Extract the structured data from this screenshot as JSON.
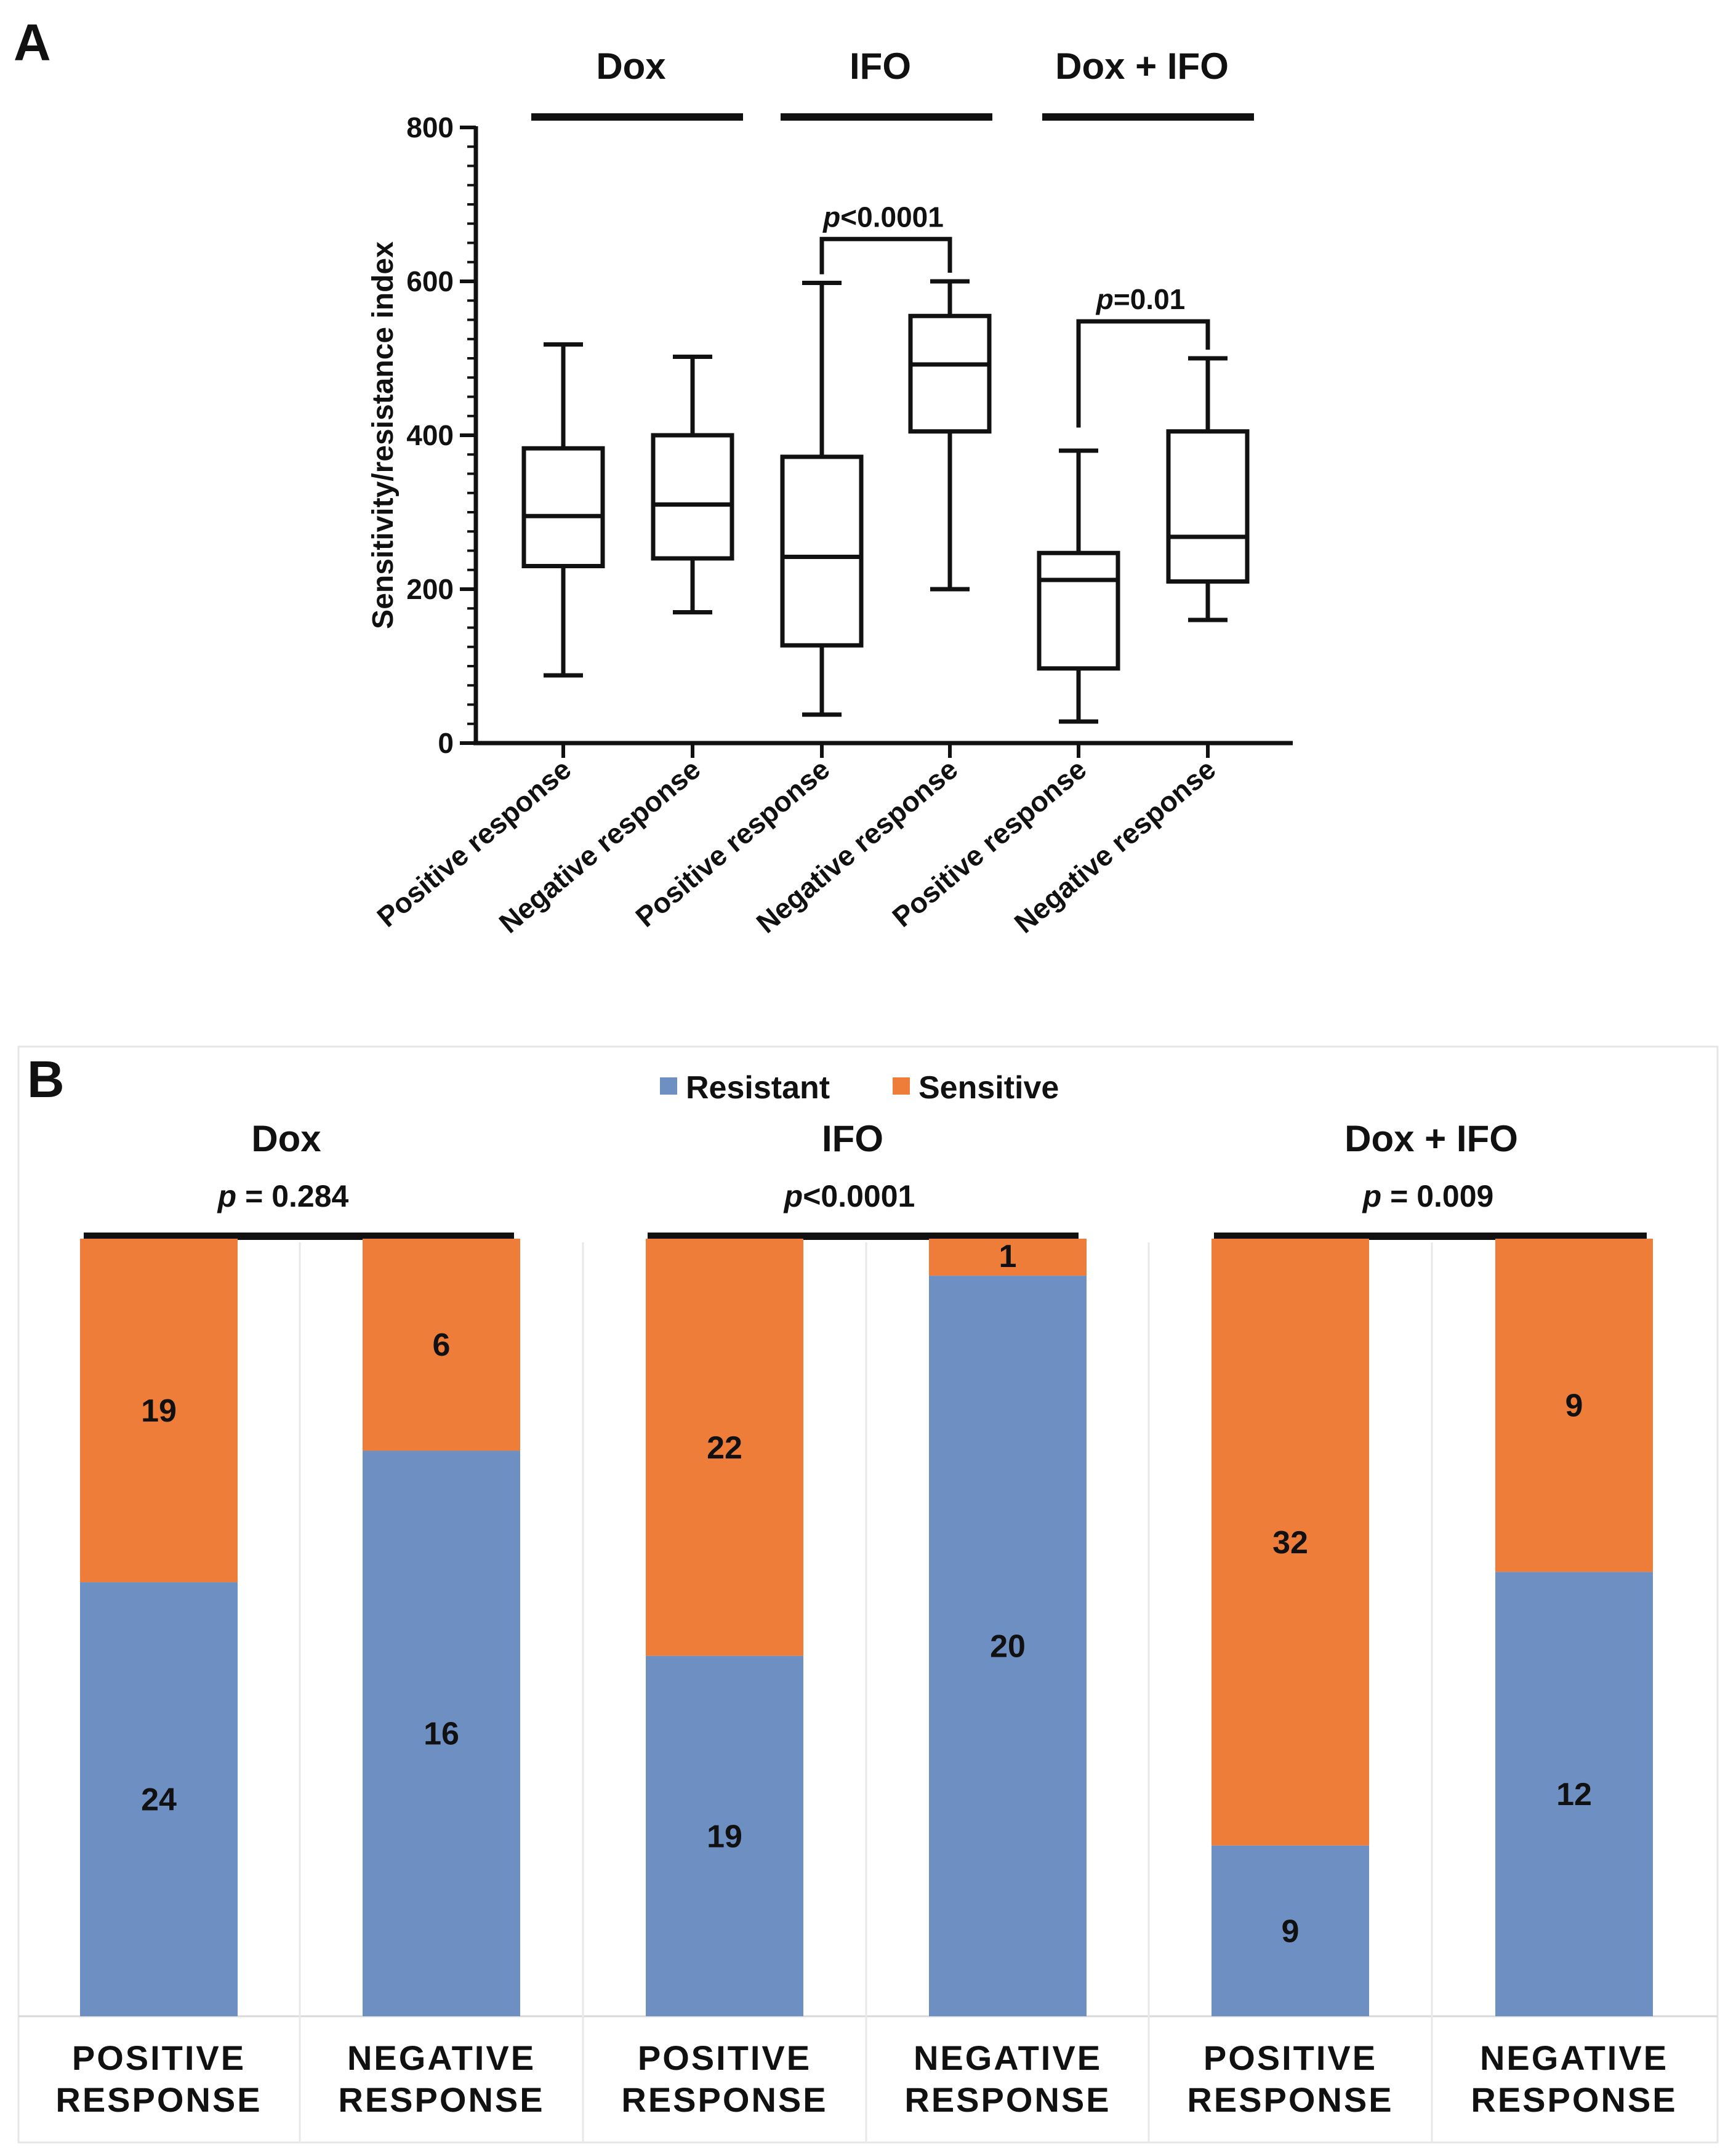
{
  "chart_data": [
    {
      "panel": "A",
      "type": "box",
      "ylabel": "Sensitivity/resistance index",
      "ylim": [
        0,
        800
      ],
      "yticks": [
        0,
        200,
        400,
        600,
        800
      ],
      "groups": [
        {
          "label": "Dox",
          "boxes": [
            0,
            1
          ]
        },
        {
          "label": "IFO",
          "boxes": [
            2,
            3
          ]
        },
        {
          "label": "Dox + IFO",
          "boxes": [
            4,
            5
          ]
        }
      ],
      "boxes": [
        {
          "label": "Positive response",
          "whisker_low": 88,
          "q1": 230,
          "median": 295,
          "q3": 383,
          "whisker_high": 518
        },
        {
          "label": "Negative response",
          "whisker_low": 170,
          "q1": 240,
          "median": 310,
          "q3": 400,
          "whisker_high": 502
        },
        {
          "label": "Positive response",
          "whisker_low": 37,
          "q1": 127,
          "median": 242,
          "q3": 372,
          "whisker_high": 598
        },
        {
          "label": "Negative response",
          "whisker_low": 200,
          "q1": 405,
          "median": 492,
          "q3": 555,
          "whisker_high": 600
        },
        {
          "label": "Positive response",
          "whisker_low": 28,
          "q1": 97,
          "median": 212,
          "q3": 247,
          "whisker_high": 380
        },
        {
          "label": "Negative response",
          "whisker_low": 160,
          "q1": 210,
          "median": 268,
          "q3": 405,
          "whisker_high": 500
        }
      ],
      "comparisons": [
        {
          "label": "p<0.0001",
          "from": 2,
          "to": 3,
          "y": 655
        },
        {
          "label": "p=0.01",
          "from": 4,
          "to": 5,
          "y": 548
        }
      ]
    },
    {
      "panel": "B",
      "type": "stacked-bar",
      "legend": [
        {
          "name": "Resistant",
          "color": "#6d8fc2"
        },
        {
          "name": "Sensitive",
          "color": "#ee7d3a"
        }
      ],
      "groups": [
        {
          "title": "Dox",
          "p": "p = 0.284",
          "bars": [
            {
              "label": [
                "POSITIVE",
                "RESPONSE"
              ],
              "resistant": 24,
              "sensitive": 19
            },
            {
              "label": [
                "NEGATIVE",
                "RESPONSE"
              ],
              "resistant": 16,
              "sensitive": 6
            }
          ]
        },
        {
          "title": "IFO",
          "p": "p<0.0001",
          "bars": [
            {
              "label": [
                "POSITIVE",
                "RESPONSE"
              ],
              "resistant": 19,
              "sensitive": 22
            },
            {
              "label": [
                "NEGATIVE",
                "RESPONSE"
              ],
              "resistant": 20,
              "sensitive": 1
            }
          ]
        },
        {
          "title": "Dox + IFO",
          "p": "p = 0.009",
          "bars": [
            {
              "label": [
                "POSITIVE",
                "RESPONSE"
              ],
              "resistant": 9,
              "sensitive": 32
            },
            {
              "label": [
                "NEGATIVE",
                "RESPONSE"
              ],
              "resistant": 12,
              "sensitive": 9
            }
          ]
        }
      ]
    }
  ],
  "panel_labels": {
    "a": "A",
    "b": "B"
  }
}
